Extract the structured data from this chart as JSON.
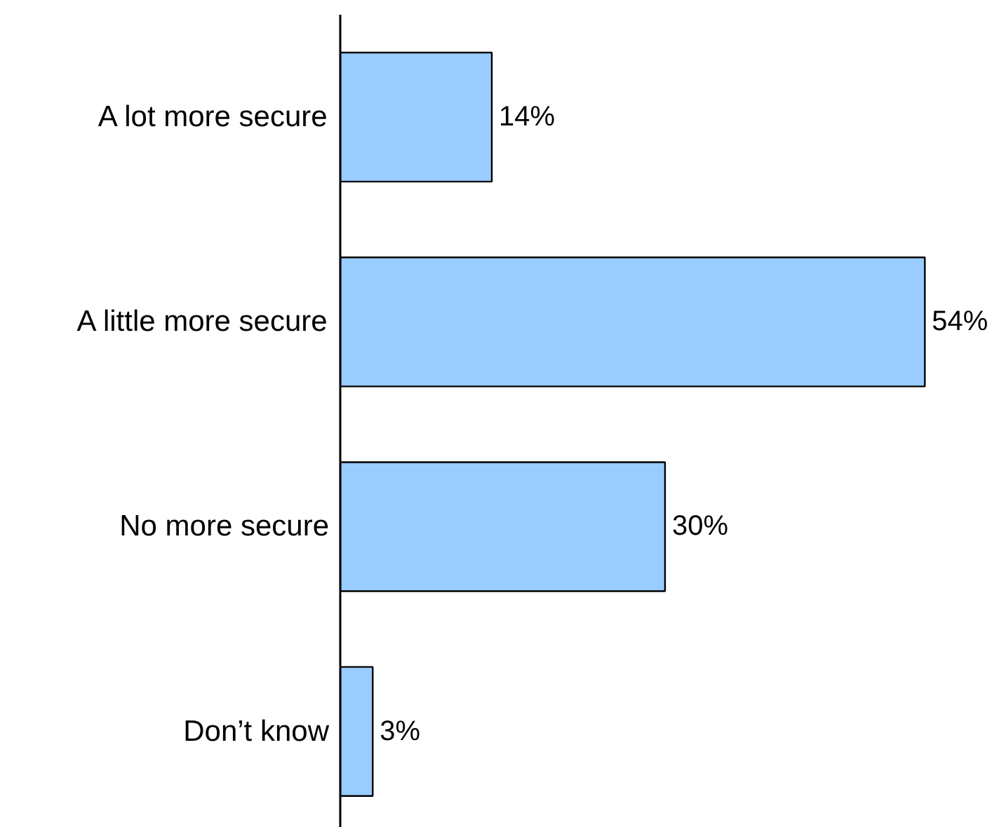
{
  "chart_data": {
    "type": "bar",
    "orientation": "horizontal",
    "categories": [
      "A lot more secure",
      "A little more secure",
      "No more secure",
      "Don’t know"
    ],
    "values": [
      14,
      54,
      30,
      3
    ],
    "value_labels": [
      "14%",
      "54%",
      "30%",
      "3%"
    ],
    "color": "#99ccff",
    "grid": false
  }
}
